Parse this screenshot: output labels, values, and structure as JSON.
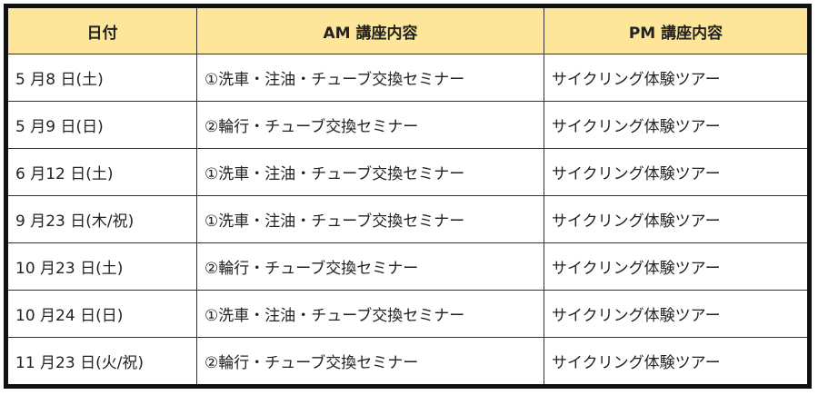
{
  "table": {
    "headers": [
      "日付",
      "AM 講座内容",
      "PM 講座内容"
    ],
    "header_color": "#fde59a",
    "rows": [
      [
        "5 月8 日(土)",
        "①洗車・注油・チューブ交換セミナー",
        "サイクリング体験ツアー"
      ],
      [
        "5 月9 日(日)",
        "②輪行・チューブ交換セミナー",
        "サイクリング体験ツアー"
      ],
      [
        "6 月12 日(土)",
        "①洗車・注油・チューブ交換セミナー",
        "サイクリング体験ツアー"
      ],
      [
        "9 月23 日(木/祝)",
        "①洗車・注油・チューブ交換セミナー",
        "サイクリング体験ツアー"
      ],
      [
        "10 月23 日(土)",
        "②輪行・チューブ交換セミナー",
        "サイクリング体験ツアー"
      ],
      [
        "10 月24 日(日)",
        "①洗車・注油・チューブ交換セミナー",
        "サイクリング体験ツアー"
      ],
      [
        "11 月23 日(火/祝)",
        "②輪行・チューブ交換セミナー",
        "サイクリング体験ツアー"
      ]
    ]
  }
}
